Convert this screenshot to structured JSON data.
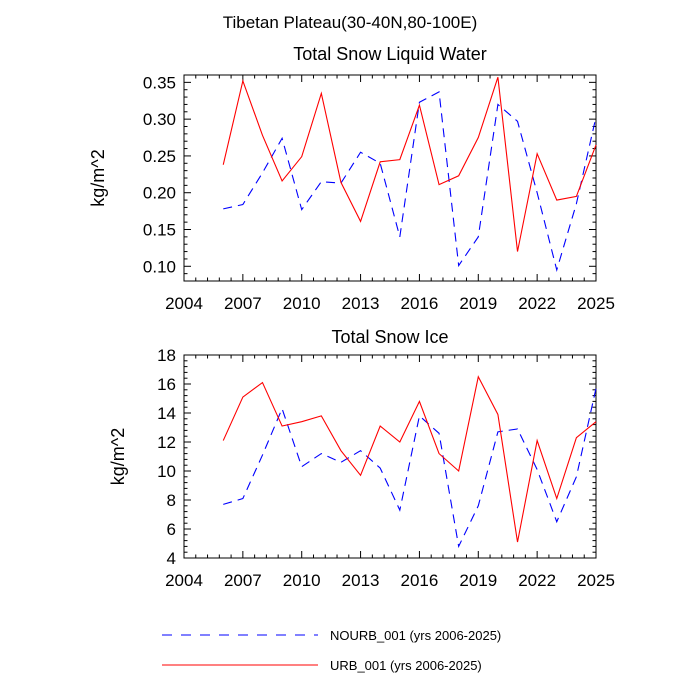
{
  "figure": {
    "suptitle": "Tibetan Plateau(30-40N,80-100E)"
  },
  "chart_data": [
    {
      "type": "line",
      "title": "Total Snow Liquid Water",
      "xlabel": "",
      "ylabel": "kg/m^2",
      "xlim": [
        2004,
        2025
      ],
      "ylim": [
        0.08,
        0.36
      ],
      "x_ticks": [
        2004,
        2007,
        2010,
        2013,
        2016,
        2019,
        2022,
        2025
      ],
      "x_tick_labels": [
        "2004",
        "2007",
        "2010",
        "2013",
        "2016",
        "2019",
        "2022",
        "2025"
      ],
      "y_ticks": [
        0.1,
        0.15,
        0.2,
        0.25,
        0.3,
        0.35
      ],
      "y_tick_labels": [
        "0.10",
        "0.15",
        "0.20",
        "0.25",
        "0.30",
        "0.35"
      ],
      "grid": false,
      "x": [
        2006,
        2007,
        2008,
        2009,
        2010,
        2011,
        2012,
        2013,
        2014,
        2015,
        2016,
        2017,
        2018,
        2019,
        2020,
        2021,
        2022,
        2023,
        2024,
        2025
      ],
      "series": [
        {
          "name": "NOURB_001 (yrs 2006-2025)",
          "color": "#0000ff",
          "dash": "dashed",
          "values": [
            0.178,
            0.184,
            0.227,
            0.274,
            0.177,
            0.215,
            0.213,
            0.255,
            0.24,
            0.14,
            0.323,
            0.337,
            0.101,
            0.14,
            0.32,
            0.297,
            0.2,
            0.095,
            0.185,
            0.303
          ]
        },
        {
          "name": "URB_001 (yrs 2006-2025)",
          "color": "#ff0000",
          "dash": "solid",
          "values": [
            0.238,
            0.352,
            0.278,
            0.216,
            0.249,
            0.335,
            0.214,
            0.161,
            0.242,
            0.245,
            0.319,
            0.211,
            0.223,
            0.275,
            0.357,
            0.12,
            0.253,
            0.19,
            0.195,
            0.265
          ]
        }
      ]
    },
    {
      "type": "line",
      "title": "Total Snow Ice",
      "xlabel": "",
      "ylabel": "kg/m^2",
      "xlim": [
        2004,
        2025
      ],
      "ylim": [
        4,
        18
      ],
      "x_ticks": [
        2004,
        2007,
        2010,
        2013,
        2016,
        2019,
        2022,
        2025
      ],
      "x_tick_labels": [
        "2004",
        "2007",
        "2010",
        "2013",
        "2016",
        "2019",
        "2022",
        "2025"
      ],
      "y_ticks": [
        4,
        6,
        8,
        10,
        12,
        14,
        16,
        18
      ],
      "y_tick_labels": [
        "4",
        "6",
        "8",
        "10",
        "12",
        "14",
        "16",
        "18"
      ],
      "grid": false,
      "x": [
        2006,
        2007,
        2008,
        2009,
        2010,
        2011,
        2012,
        2013,
        2014,
        2015,
        2016,
        2017,
        2018,
        2019,
        2020,
        2021,
        2022,
        2023,
        2024,
        2025
      ],
      "series": [
        {
          "name": "NOURB_001 (yrs 2006-2025)",
          "color": "#0000ff",
          "dash": "dashed",
          "values": [
            7.7,
            8.1,
            11.1,
            14.3,
            10.3,
            11.2,
            10.6,
            11.4,
            10.2,
            7.3,
            13.8,
            12.6,
            4.8,
            7.6,
            12.7,
            12.9,
            10.1,
            6.5,
            9.6,
            15.7
          ]
        },
        {
          "name": "URB_001 (yrs 2006-2025)",
          "color": "#ff0000",
          "dash": "solid",
          "values": [
            12.1,
            15.1,
            16.1,
            13.1,
            13.4,
            13.8,
            11.4,
            9.7,
            13.1,
            12.0,
            14.8,
            11.2,
            10.0,
            16.5,
            13.9,
            5.1,
            12.1,
            8.1,
            12.3,
            13.4
          ]
        }
      ]
    }
  ],
  "legend": {
    "placement": "bottom",
    "items": [
      {
        "label": "NOURB_001 (yrs 2006-2025)",
        "color": "#0000ff",
        "dash": "dashed"
      },
      {
        "label": "URB_001 (yrs 2006-2025)",
        "color": "#ff0000",
        "dash": "solid"
      }
    ]
  }
}
